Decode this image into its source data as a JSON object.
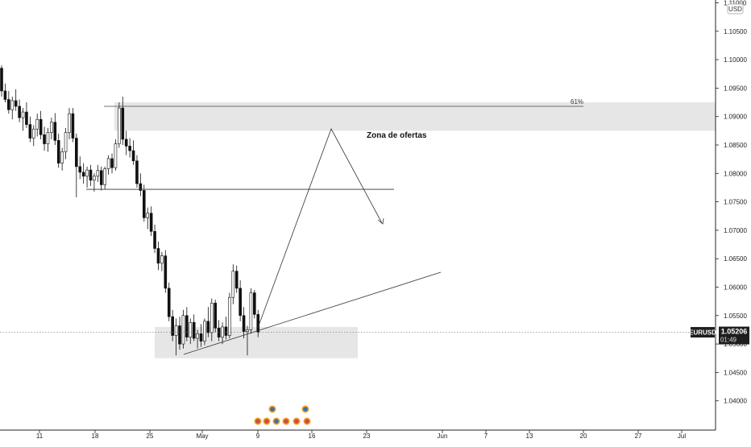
{
  "chart_data": {
    "type": "candlestick",
    "symbol": "EURUSD",
    "currency": "USD",
    "last_price": "1.05206",
    "countdown": "01:49",
    "y_range": [
      1.035,
      1.113
    ],
    "y_ticks": [
      "1.11000",
      "1.10500",
      "1.10000",
      "1.09500",
      "1.09000",
      "1.08500",
      "1.08000",
      "1.07500",
      "1.07000",
      "1.06500",
      "1.06000",
      "1.05500",
      "1.05000",
      "1.04500",
      "1.04000"
    ],
    "x_labels": [
      "11",
      "18",
      "25",
      "May",
      "9",
      "16",
      "23",
      "Jun",
      "7",
      "13",
      "20",
      "27",
      "Jul"
    ],
    "zones": [
      {
        "name": "supply-zone",
        "y_top": 1.0925,
        "y_bottom": 1.0875
      },
      {
        "name": "demand-zone",
        "y_top": 1.053,
        "y_bottom": 1.0475
      }
    ],
    "annotations": {
      "fib_label": "61%",
      "fib_level": 1.0918,
      "resistance_level": 1.0772,
      "zone_label": "Zona de ofertas"
    },
    "candles": [
      [
        1.0985,
        1.099,
        1.0935,
        1.0945
      ],
      [
        1.0945,
        1.0958,
        1.0925,
        1.093
      ],
      [
        1.093,
        1.0945,
        1.0905,
        1.0912
      ],
      [
        1.0912,
        1.0935,
        1.0895,
        1.0928
      ],
      [
        1.0928,
        1.0948,
        1.091,
        1.0918
      ],
      [
        1.0918,
        1.093,
        1.089,
        1.0898
      ],
      [
        1.0898,
        1.0915,
        1.0875,
        1.0908
      ],
      [
        1.0908,
        1.0925,
        1.088,
        1.0886
      ],
      [
        1.0886,
        1.09,
        1.0855,
        1.0862
      ],
      [
        1.0862,
        1.0885,
        1.0848,
        1.0878
      ],
      [
        1.0878,
        1.0905,
        1.0865,
        1.0895
      ],
      [
        1.0895,
        1.091,
        1.086,
        1.0868
      ],
      [
        1.0868,
        1.0882,
        1.084,
        1.0852
      ],
      [
        1.0852,
        1.088,
        1.0838,
        1.0872
      ],
      [
        1.0872,
        1.0898,
        1.086,
        1.089
      ],
      [
        1.089,
        1.0906,
        1.085,
        1.0858
      ],
      [
        1.0858,
        1.087,
        1.081,
        1.0818
      ],
      [
        1.0818,
        1.0845,
        1.0805,
        1.0838
      ],
      [
        1.0838,
        1.088,
        1.0825,
        1.0872
      ],
      [
        1.0872,
        1.0915,
        1.086,
        1.0905
      ],
      [
        1.0905,
        1.0915,
        1.0855,
        1.0862
      ],
      [
        1.0862,
        1.087,
        1.0758,
        1.0812
      ],
      [
        1.0812,
        1.083,
        1.079,
        1.0802
      ],
      [
        1.0802,
        1.0818,
        1.0782,
        1.0795
      ],
      [
        1.0795,
        1.0812,
        1.0775,
        1.0806
      ],
      [
        1.0806,
        1.0815,
        1.0778,
        1.0788
      ],
      [
        1.0788,
        1.08,
        1.0768,
        1.0795
      ],
      [
        1.0795,
        1.0815,
        1.0785,
        1.0805
      ],
      [
        1.0805,
        1.0812,
        1.077,
        1.078
      ],
      [
        1.078,
        1.0812,
        1.0772,
        1.0808
      ],
      [
        1.0808,
        1.0832,
        1.0798,
        1.0826
      ],
      [
        1.0826,
        1.0835,
        1.08,
        1.081
      ],
      [
        1.081,
        1.086,
        1.0805,
        1.0852
      ],
      [
        1.0852,
        1.0925,
        1.0845,
        1.0915
      ],
      [
        1.0915,
        1.0935,
        1.085,
        1.086
      ],
      [
        1.086,
        1.0875,
        1.0832,
        1.0848
      ],
      [
        1.0848,
        1.0862,
        1.0828,
        1.084
      ],
      [
        1.084,
        1.0858,
        1.0815,
        1.0822
      ],
      [
        1.0822,
        1.0832,
        1.0775,
        1.0782
      ],
      [
        1.0782,
        1.08,
        1.076,
        1.077
      ],
      [
        1.077,
        1.078,
        1.0715,
        1.0722
      ],
      [
        1.0722,
        1.074,
        1.0702,
        1.073
      ],
      [
        1.073,
        1.0742,
        1.069,
        1.0698
      ],
      [
        1.0698,
        1.071,
        1.066,
        1.0668
      ],
      [
        1.0668,
        1.068,
        1.063,
        1.0642
      ],
      [
        1.0642,
        1.0662,
        1.0628,
        1.0655
      ],
      [
        1.0655,
        1.0665,
        1.059,
        1.0598
      ],
      [
        1.0598,
        1.0608,
        1.054,
        1.0548
      ],
      [
        1.0548,
        1.056,
        1.0505,
        1.0515
      ],
      [
        1.0515,
        1.0545,
        1.048,
        1.0532
      ],
      [
        1.0532,
        1.0548,
        1.049,
        1.05
      ],
      [
        1.05,
        1.056,
        1.0492,
        1.055
      ],
      [
        1.055,
        1.0565,
        1.0505,
        1.0512
      ],
      [
        1.0512,
        1.0545,
        1.05,
        1.0538
      ],
      [
        1.0538,
        1.0552,
        1.0505,
        1.051
      ],
      [
        1.051,
        1.0525,
        1.0492,
        1.0518
      ],
      [
        1.0518,
        1.0535,
        1.0495,
        1.0505
      ],
      [
        1.0505,
        1.0545,
        1.0498,
        1.054
      ],
      [
        1.054,
        1.0565,
        1.0512,
        1.052
      ],
      [
        1.052,
        1.058,
        1.0505,
        1.0572
      ],
      [
        1.0572,
        1.0578,
        1.052,
        1.0528
      ],
      [
        1.0528,
        1.0542,
        1.0505,
        1.0512
      ],
      [
        1.0512,
        1.0538,
        1.05,
        1.053
      ],
      [
        1.053,
        1.0548,
        1.0508,
        1.0515
      ],
      [
        1.0515,
        1.059,
        1.051,
        1.0582
      ],
      [
        1.0582,
        1.064,
        1.057,
        1.0628
      ],
      [
        1.0628,
        1.0638,
        1.059,
        1.0598
      ],
      [
        1.0598,
        1.0612,
        1.054,
        1.055
      ],
      [
        1.055,
        1.0565,
        1.051,
        1.0522
      ],
      [
        1.0522,
        1.0532,
        1.048,
        1.0525
      ],
      [
        1.0525,
        1.0598,
        1.0518,
        1.059
      ],
      [
        1.059,
        1.0595,
        1.0545,
        1.0552
      ],
      [
        1.0552,
        1.056,
        1.0512,
        1.0521
      ]
    ]
  }
}
